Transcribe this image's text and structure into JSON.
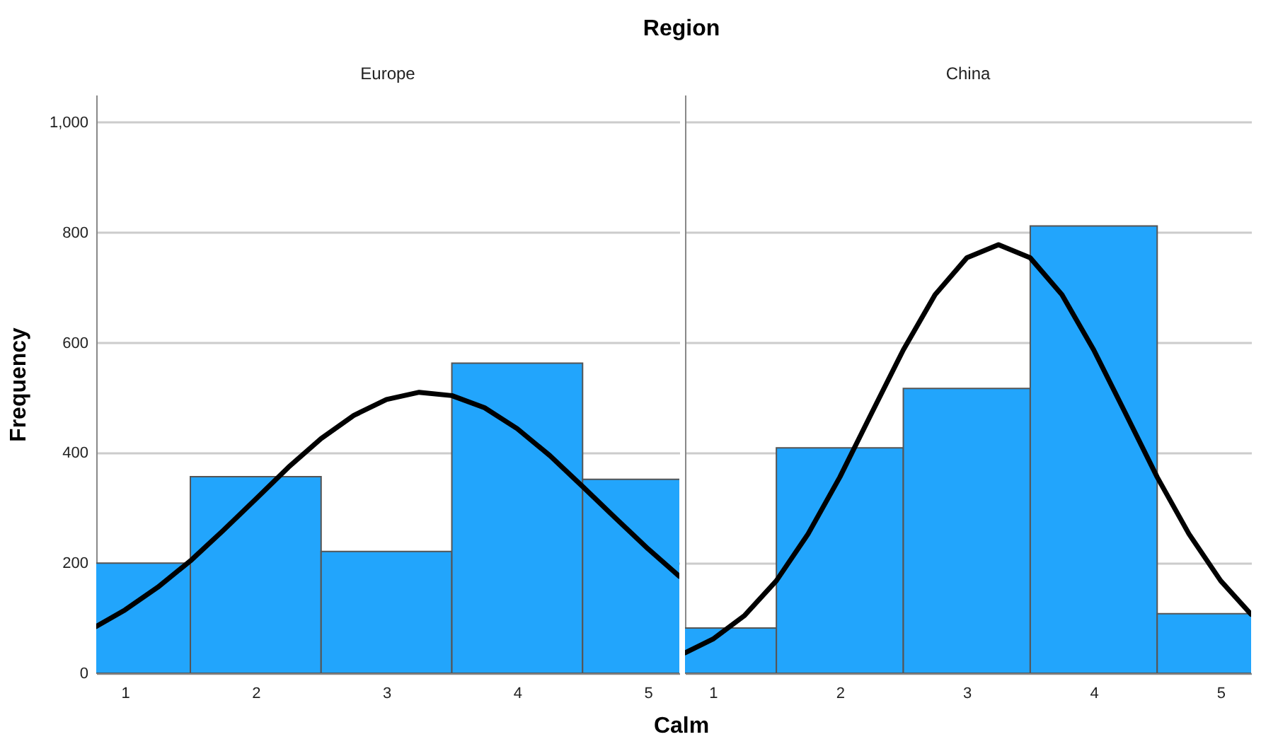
{
  "chart_data": [
    {
      "type": "histogram",
      "title": "Europe",
      "ylabel": "Frequency",
      "xlabel": "Calm",
      "annotations": [
        "Region"
      ],
      "bins": [
        0.5,
        1.5,
        2.5,
        3.5,
        4.5,
        5.5
      ],
      "grid": "y",
      "xlim": [
        0.78,
        5.24
      ],
      "ylim": [
        0,
        1050
      ],
      "xticks": [
        1,
        2,
        3,
        4,
        5
      ],
      "yticks": [
        0,
        200,
        400,
        600,
        800,
        {
          "value": 1000,
          "label": "1,000"
        }
      ],
      "series": [
        {
          "type": "histogram",
          "color": "#22a5fc",
          "values": [
            200,
            357,
            221,
            563,
            352
          ]
        },
        {
          "type": "line",
          "color": "#000000",
          "x": [
            0.78,
            1,
            1.25,
            1.5,
            1.75,
            2,
            2.25,
            2.5,
            2.75,
            3,
            3.25,
            3.5,
            3.75,
            4,
            4.25,
            4.5,
            4.75,
            5,
            5.24
          ],
          "values": [
            85,
            115,
            156,
            204,
            259,
            316,
            374,
            426,
            468,
            497,
            510,
            504,
            482,
            444,
            395,
            339,
            282,
            226,
            176
          ]
        }
      ]
    },
    {
      "type": "histogram",
      "title": "China",
      "tick_labels": "x",
      "bins": [
        0.5,
        1.5,
        2.5,
        3.5,
        4.5,
        5.5
      ],
      "grid": "y",
      "xlim": [
        0.78,
        5.24
      ],
      "ylim": [
        0,
        1050
      ],
      "xticks": [
        1,
        2,
        3,
        4,
        5
      ],
      "yticks": [
        0,
        200,
        400,
        600,
        800,
        1000
      ],
      "series": [
        {
          "type": "histogram",
          "color": "#22a5fc",
          "values": [
            82,
            409,
            517,
            812,
            108
          ]
        },
        {
          "type": "line",
          "color": "#000000",
          "x": [
            0.78,
            1,
            1.25,
            1.5,
            1.75,
            2,
            2.25,
            2.5,
            2.75,
            3,
            3.25,
            3.5,
            3.75,
            4,
            4.25,
            4.5,
            4.75,
            5,
            5.24
          ],
          "values": [
            37,
            62,
            105,
            168,
            253,
            356,
            472,
            587,
            687,
            754,
            778,
            754,
            687,
            587,
            472,
            356,
            253,
            168,
            107
          ]
        }
      ]
    }
  ]
}
